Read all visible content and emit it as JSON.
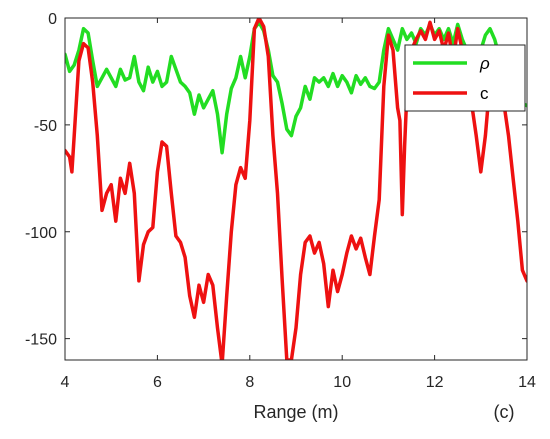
{
  "chart_data": {
    "type": "line",
    "title": "",
    "xlabel": "Range (m)",
    "ylabel": "",
    "panel_label": "(c)",
    "xlim": [
      4,
      14
    ],
    "ylim": [
      -160,
      0
    ],
    "xticks": [
      4,
      6,
      8,
      10,
      12,
      14
    ],
    "yticks": [
      0,
      -50,
      -100,
      -150
    ],
    "xtick_labels": [
      "4",
      "6",
      "8",
      "10",
      "12",
      "14"
    ],
    "ytick_labels": [
      "0",
      "-50",
      "-100",
      "-150"
    ],
    "grid": false,
    "legend_position": "top-right",
    "series": [
      {
        "name": "ρ",
        "color": "#22dd22",
        "points": [
          [
            4.0,
            -17
          ],
          [
            4.1,
            -25
          ],
          [
            4.2,
            -22
          ],
          [
            4.3,
            -15
          ],
          [
            4.4,
            -5
          ],
          [
            4.5,
            -7
          ],
          [
            4.6,
            -20
          ],
          [
            4.7,
            -32
          ],
          [
            4.8,
            -28
          ],
          [
            4.9,
            -24
          ],
          [
            5.0,
            -28
          ],
          [
            5.1,
            -32
          ],
          [
            5.2,
            -24
          ],
          [
            5.3,
            -29
          ],
          [
            5.4,
            -28
          ],
          [
            5.5,
            -18
          ],
          [
            5.6,
            -30
          ],
          [
            5.7,
            -34
          ],
          [
            5.8,
            -23
          ],
          [
            5.9,
            -30
          ],
          [
            6.0,
            -25
          ],
          [
            6.1,
            -32
          ],
          [
            6.2,
            -30
          ],
          [
            6.3,
            -18
          ],
          [
            6.4,
            -24
          ],
          [
            6.5,
            -30
          ],
          [
            6.6,
            -32
          ],
          [
            6.7,
            -35
          ],
          [
            6.8,
            -45
          ],
          [
            6.9,
            -36
          ],
          [
            7.0,
            -42
          ],
          [
            7.1,
            -38
          ],
          [
            7.2,
            -34
          ],
          [
            7.3,
            -45
          ],
          [
            7.4,
            -63
          ],
          [
            7.5,
            -45
          ],
          [
            7.6,
            -33
          ],
          [
            7.7,
            -28
          ],
          [
            7.8,
            -18
          ],
          [
            7.9,
            -28
          ],
          [
            8.0,
            -18
          ],
          [
            8.1,
            -5
          ],
          [
            8.2,
            -2
          ],
          [
            8.3,
            -6
          ],
          [
            8.4,
            -15
          ],
          [
            8.5,
            -27
          ],
          [
            8.6,
            -30
          ],
          [
            8.7,
            -40
          ],
          [
            8.8,
            -52
          ],
          [
            8.9,
            -55
          ],
          [
            9.0,
            -46
          ],
          [
            9.1,
            -42
          ],
          [
            9.2,
            -32
          ],
          [
            9.3,
            -38
          ],
          [
            9.4,
            -28
          ],
          [
            9.5,
            -30
          ],
          [
            9.6,
            -28
          ],
          [
            9.7,
            -32
          ],
          [
            9.8,
            -26
          ],
          [
            9.9,
            -32
          ],
          [
            10.0,
            -27
          ],
          [
            10.1,
            -30
          ],
          [
            10.2,
            -35
          ],
          [
            10.3,
            -27
          ],
          [
            10.4,
            -31
          ],
          [
            10.5,
            -28
          ],
          [
            10.6,
            -32
          ],
          [
            10.7,
            -33
          ],
          [
            10.8,
            -30
          ],
          [
            10.9,
            -15
          ],
          [
            11.0,
            -5
          ],
          [
            11.1,
            -10
          ],
          [
            11.2,
            -15
          ],
          [
            11.3,
            -5
          ],
          [
            11.4,
            -10
          ],
          [
            11.5,
            -7
          ],
          [
            11.6,
            -12
          ],
          [
            11.7,
            -5
          ],
          [
            11.8,
            -8
          ],
          [
            11.9,
            -3
          ],
          [
            12.0,
            -8
          ],
          [
            12.1,
            -5
          ],
          [
            12.2,
            -10
          ],
          [
            12.3,
            -5
          ],
          [
            12.4,
            -12
          ],
          [
            12.5,
            -3
          ],
          [
            12.6,
            -10
          ],
          [
            12.7,
            -15
          ],
          [
            12.8,
            -25
          ],
          [
            12.9,
            -30
          ],
          [
            13.0,
            -15
          ],
          [
            13.1,
            -8
          ],
          [
            13.2,
            -5
          ],
          [
            13.3,
            -10
          ],
          [
            13.4,
            -18
          ],
          [
            13.5,
            -20
          ],
          [
            13.6,
            -25
          ],
          [
            13.7,
            -32
          ],
          [
            13.8,
            -38
          ],
          [
            13.9,
            -40
          ],
          [
            14.0,
            -41
          ]
        ]
      },
      {
        "name": "c",
        "color": "#ee1111",
        "points": [
          [
            4.0,
            -62
          ],
          [
            4.1,
            -65
          ],
          [
            4.15,
            -72
          ],
          [
            4.2,
            -55
          ],
          [
            4.3,
            -20
          ],
          [
            4.4,
            -12
          ],
          [
            4.5,
            -14
          ],
          [
            4.6,
            -30
          ],
          [
            4.7,
            -55
          ],
          [
            4.8,
            -90
          ],
          [
            4.9,
            -82
          ],
          [
            5.0,
            -78
          ],
          [
            5.1,
            -95
          ],
          [
            5.2,
            -75
          ],
          [
            5.3,
            -82
          ],
          [
            5.4,
            -68
          ],
          [
            5.5,
            -82
          ],
          [
            5.6,
            -123
          ],
          [
            5.7,
            -106
          ],
          [
            5.8,
            -100
          ],
          [
            5.9,
            -98
          ],
          [
            6.0,
            -72
          ],
          [
            6.1,
            -58
          ],
          [
            6.2,
            -60
          ],
          [
            6.3,
            -82
          ],
          [
            6.4,
            -102
          ],
          [
            6.5,
            -105
          ],
          [
            6.6,
            -112
          ],
          [
            6.7,
            -130
          ],
          [
            6.8,
            -140
          ],
          [
            6.9,
            -125
          ],
          [
            7.0,
            -133
          ],
          [
            7.1,
            -120
          ],
          [
            7.2,
            -125
          ],
          [
            7.3,
            -145
          ],
          [
            7.4,
            -162
          ],
          [
            7.5,
            -130
          ],
          [
            7.6,
            -100
          ],
          [
            7.7,
            -78
          ],
          [
            7.8,
            -70
          ],
          [
            7.9,
            -75
          ],
          [
            8.0,
            -48
          ],
          [
            8.1,
            -5
          ],
          [
            8.2,
            0
          ],
          [
            8.3,
            -4
          ],
          [
            8.4,
            -18
          ],
          [
            8.5,
            -55
          ],
          [
            8.6,
            -82
          ],
          [
            8.7,
            -122
          ],
          [
            8.8,
            -160
          ],
          [
            8.9,
            -160
          ],
          [
            9.0,
            -145
          ],
          [
            9.1,
            -120
          ],
          [
            9.2,
            -105
          ],
          [
            9.3,
            -102
          ],
          [
            9.4,
            -110
          ],
          [
            9.5,
            -105
          ],
          [
            9.6,
            -115
          ],
          [
            9.7,
            -135
          ],
          [
            9.8,
            -118
          ],
          [
            9.9,
            -128
          ],
          [
            10.0,
            -120
          ],
          [
            10.1,
            -110
          ],
          [
            10.2,
            -102
          ],
          [
            10.3,
            -108
          ],
          [
            10.4,
            -103
          ],
          [
            10.5,
            -112
          ],
          [
            10.6,
            -120
          ],
          [
            10.7,
            -102
          ],
          [
            10.8,
            -85
          ],
          [
            10.9,
            -32
          ],
          [
            11.0,
            -8
          ],
          [
            11.1,
            -15
          ],
          [
            11.2,
            -42
          ],
          [
            11.25,
            -48
          ],
          [
            11.3,
            -92
          ],
          [
            11.35,
            -60
          ],
          [
            11.4,
            -35
          ],
          [
            11.5,
            -15
          ],
          [
            11.6,
            -10
          ],
          [
            11.7,
            -6
          ],
          [
            11.8,
            -10
          ],
          [
            11.9,
            -2
          ],
          [
            12.0,
            -10
          ],
          [
            12.1,
            -6
          ],
          [
            12.2,
            -15
          ],
          [
            12.3,
            -7
          ],
          [
            12.4,
            -20
          ],
          [
            12.5,
            -5
          ],
          [
            12.6,
            -15
          ],
          [
            12.7,
            -25
          ],
          [
            12.8,
            -40
          ],
          [
            12.9,
            -55
          ],
          [
            13.0,
            -72
          ],
          [
            13.1,
            -55
          ],
          [
            13.2,
            -30
          ],
          [
            13.3,
            -22
          ],
          [
            13.4,
            -25
          ],
          [
            13.5,
            -40
          ],
          [
            13.6,
            -55
          ],
          [
            13.7,
            -75
          ],
          [
            13.8,
            -95
          ],
          [
            13.9,
            -118
          ],
          [
            14.0,
            -123
          ]
        ]
      }
    ]
  }
}
